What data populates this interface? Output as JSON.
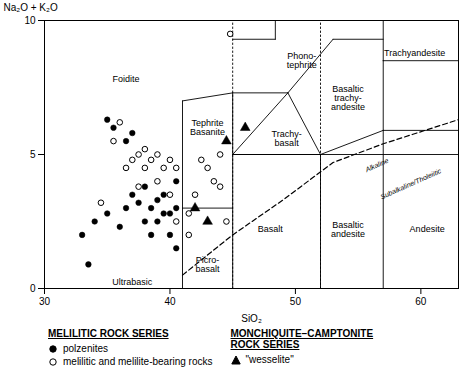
{
  "chart_data": {
    "type": "scatter",
    "xlabel": "SiO₂",
    "ylabel": "Na₂O + K₂O",
    "xlim": [
      30,
      63
    ],
    "ylim": [
      0,
      10
    ],
    "xticks": [
      30,
      40,
      50,
      60
    ],
    "yticks": [
      0,
      5,
      10
    ],
    "legend": "bottom",
    "series": [
      {
        "name": "polzenites",
        "group": "MELILITIC ROCK SERIES",
        "color": "black",
        "marker": "circle",
        "values": [
          [
            33.5,
            0.9
          ],
          [
            33.0,
            2.0
          ],
          [
            34.0,
            2.5
          ],
          [
            35.0,
            2.8
          ],
          [
            36.0,
            2.3
          ],
          [
            36.5,
            3.0
          ],
          [
            37.0,
            3.5
          ],
          [
            37.5,
            3.2
          ],
          [
            38.0,
            3.8
          ],
          [
            38.0,
            2.5
          ],
          [
            38.5,
            2.0
          ],
          [
            38.5,
            3.0
          ],
          [
            39.0,
            2.5
          ],
          [
            39.0,
            3.3
          ],
          [
            39.5,
            2.8
          ],
          [
            39.5,
            3.5
          ],
          [
            40.0,
            2.0
          ],
          [
            40.0,
            2.8
          ],
          [
            40.5,
            3.0
          ],
          [
            40.5,
            4.0
          ],
          [
            40.5,
            1.5
          ],
          [
            35.0,
            6.3
          ],
          [
            35.5,
            6.0
          ],
          [
            36.5,
            5.5
          ],
          [
            37.0,
            5.8
          ]
        ]
      },
      {
        "name": "melilitic and melilite-bearing rocks",
        "group": "MELILITIC ROCK SERIES",
        "color": "black",
        "marker": "open_circle",
        "values": [
          [
            34.5,
            3.2
          ],
          [
            35.5,
            5.5
          ],
          [
            36.0,
            6.2
          ],
          [
            36.5,
            4.5
          ],
          [
            37.0,
            4.8
          ],
          [
            37.5,
            5.0
          ],
          [
            37.5,
            3.8
          ],
          [
            38.0,
            4.5
          ],
          [
            38.0,
            5.2
          ],
          [
            38.5,
            4.8
          ],
          [
            39.0,
            5.0
          ],
          [
            39.5,
            4.5
          ],
          [
            39.0,
            4.0
          ],
          [
            40.0,
            4.8
          ],
          [
            40.5,
            4.5
          ],
          [
            40.0,
            3.5
          ],
          [
            40.5,
            2.5
          ],
          [
            41.5,
            2.0
          ],
          [
            41.5,
            2.8
          ],
          [
            42.0,
            3.5
          ],
          [
            42.5,
            4.8
          ],
          [
            43.0,
            4.5
          ],
          [
            43.5,
            4.0
          ],
          [
            44.0,
            3.8
          ],
          [
            44.5,
            2.5
          ],
          [
            44.0,
            5.0
          ],
          [
            44.8,
            9.5
          ]
        ]
      },
      {
        "name": "\"wesselite\"",
        "group": "MONCHIQUITE–CAMPTONITE\nROCK SERIES",
        "color": "black",
        "marker": "triangle",
        "values": [
          [
            42.0,
            3.0
          ],
          [
            43.0,
            2.5
          ],
          [
            44.5,
            5.5
          ],
          [
            46.0,
            6.0
          ]
        ]
      }
    ],
    "lines": [
      {
        "x": [
          41,
          41
        ],
        "y": [
          0,
          3
        ],
        "line_style": "solid"
      },
      {
        "x": [
          41,
          45
        ],
        "y": [
          3,
          3
        ],
        "line_style": "solid"
      },
      {
        "x": [
          41,
          41
        ],
        "y": [
          3,
          7
        ],
        "line_style": "solid"
      },
      {
        "x": [
          41,
          45
        ],
        "y": [
          7,
          7.3
        ],
        "line_style": "solid"
      },
      {
        "x": [
          45,
          45
        ],
        "y": [
          0,
          5
        ],
        "line_style": "solid"
      },
      {
        "x": [
          45,
          52
        ],
        "y": [
          5,
          5
        ],
        "line_style": "solid"
      },
      {
        "x": [
          52,
          52
        ],
        "y": [
          0,
          5
        ],
        "line_style": "solid"
      },
      {
        "x": [
          57,
          57
        ],
        "y": [
          0,
          5.9
        ],
        "line_style": "solid"
      },
      {
        "x": [
          63,
          63
        ],
        "y": [
          0,
          5.9
        ],
        "line_style": "solid"
      },
      {
        "x": [
          52,
          57
        ],
        "y": [
          5,
          5.9
        ],
        "line_style": "solid"
      },
      {
        "x": [
          57,
          63
        ],
        "y": [
          5.9,
          5.9
        ],
        "line_style": "solid"
      },
      {
        "x": [
          45,
          49.4
        ],
        "y": [
          5,
          7.3
        ],
        "line_style": "solid"
      },
      {
        "x": [
          49.4,
          52
        ],
        "y": [
          7.3,
          5
        ],
        "line_style": "solid"
      },
      {
        "x": [
          45,
          45
        ],
        "y": [
          5,
          7.3
        ],
        "line_style": "solid"
      },
      {
        "x": [
          45,
          49.4
        ],
        "y": [
          7.3,
          7.3
        ],
        "line_style": "solid"
      },
      {
        "x": [
          45,
          48.4
        ],
        "y": [
          9.3,
          9.3
        ],
        "line_style": "solid"
      },
      {
        "x": [
          49.4,
          53
        ],
        "y": [
          7.3,
          9.3
        ],
        "line_style": "solid"
      },
      {
        "x": [
          48.4,
          48.4
        ],
        "y": [
          9.3,
          10
        ],
        "line_style": "solid"
      },
      {
        "x": [
          53,
          57
        ],
        "y": [
          9.3,
          9.3
        ],
        "line_style": "solid"
      },
      {
        "x": [
          57,
          57
        ],
        "y": [
          5.9,
          8.5
        ],
        "line_style": "solid"
      },
      {
        "x": [
          57,
          63
        ],
        "y": [
          8.5,
          8.5
        ],
        "line_style": "solid"
      },
      {
        "x": [
          63,
          63
        ],
        "y": [
          5.9,
          8.5
        ],
        "line_style": "solid"
      },
      {
        "x": [
          57,
          57
        ],
        "y": [
          8.5,
          10
        ],
        "line_style": "solid"
      },
      {
        "x": [
          45,
          63
        ],
        "y": [
          5,
          5
        ],
        "line_style": "solid"
      },
      {
        "x": [
          45,
          45
        ],
        "y": [
          0,
          10
        ],
        "line_style": "dotted"
      },
      {
        "x": [
          52,
          52
        ],
        "y": [
          0,
          10
        ],
        "line_style": "dotted"
      },
      {
        "x": [
          41,
          45,
          49,
          53,
          57,
          63
        ],
        "y": [
          0.5,
          2.0,
          3.3,
          4.7,
          5.4,
          6.3
        ],
        "line_style": "dashed"
      }
    ],
    "line_labels": [
      {
        "text": "Alkaline",
        "x": 56.5,
        "y": 4.6
      },
      {
        "text": "Subalkaline/Tholeiitic",
        "x": 59.2,
        "y": 3.9
      }
    ],
    "annotations": [
      {
        "text": "Foidite",
        "x": 36.5,
        "y": 7.8
      },
      {
        "text": "Tephrite\nBasanite",
        "x": 43.0,
        "y": 6.0
      },
      {
        "text": "Phono-\ntephrite",
        "x": 50.5,
        "y": 8.5
      },
      {
        "text": "Trachyandesite",
        "x": 59.5,
        "y": 8.8
      },
      {
        "text": "Basaltic\ntrachy-\nandesite",
        "x": 54.2,
        "y": 7.1
      },
      {
        "text": "Trachy-\nbasalt",
        "x": 49.3,
        "y": 5.6
      },
      {
        "text": "Basalt",
        "x": 48.0,
        "y": 2.2
      },
      {
        "text": "Basaltic\nandesite",
        "x": 54.2,
        "y": 2.2
      },
      {
        "text": "Andesite",
        "x": 60.5,
        "y": 2.2
      },
      {
        "text": "Picro-\nbasalt",
        "x": 43.0,
        "y": 0.9
      },
      {
        "text": "Ultrabasic",
        "x": 37.0,
        "y": 0.25
      }
    ]
  }
}
